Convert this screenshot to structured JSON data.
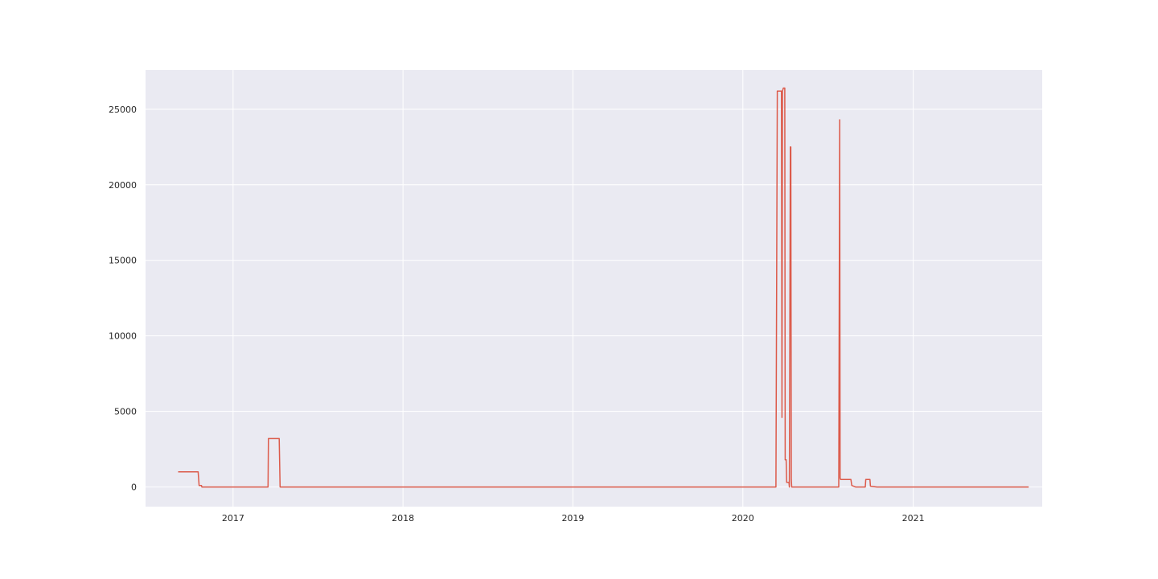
{
  "chart_data": {
    "type": "line",
    "title": "",
    "xlabel": "",
    "ylabel": "",
    "grid": true,
    "colors": {
      "plot_background": "#eaeaf2",
      "grid": "#ffffff",
      "line": "#dc5a4a"
    },
    "xlim": [
      "2016-06-27",
      "2021-10-05"
    ],
    "ylim": [
      -1300,
      27600
    ],
    "x_ticks": [
      {
        "date": "2017-01-01",
        "label": "2017"
      },
      {
        "date": "2018-01-01",
        "label": "2018"
      },
      {
        "date": "2019-01-01",
        "label": "2019"
      },
      {
        "date": "2020-01-01",
        "label": "2020"
      },
      {
        "date": "2021-01-01",
        "label": "2021"
      }
    ],
    "y_ticks": [
      {
        "value": 0,
        "label": "0"
      },
      {
        "value": 5000,
        "label": "5000"
      },
      {
        "value": 10000,
        "label": "10000"
      },
      {
        "value": 15000,
        "label": "15000"
      },
      {
        "value": 20000,
        "label": "20000"
      },
      {
        "value": 25000,
        "label": "25000"
      }
    ],
    "series": [
      {
        "x": [
          "2016-09-05",
          "2016-10-18",
          "2016-10-20",
          "2016-10-25",
          "2016-10-26",
          "2017-03-17",
          "2017-03-18",
          "2017-04-10",
          "2017-04-12",
          "2020-03-12",
          "2020-03-15",
          "2020-03-16",
          "2020-03-24",
          "2020-03-25",
          "2020-03-26",
          "2020-03-28",
          "2020-03-31",
          "2020-04-01",
          "2020-04-03",
          "2020-04-04",
          "2020-04-09",
          "2020-04-10",
          "2020-04-12",
          "2020-04-13",
          "2020-04-14",
          "2020-04-15",
          "2020-04-16",
          "2020-04-17",
          "2020-04-18",
          "2020-04-19",
          "2020-07-25",
          "2020-07-27",
          "2020-07-28",
          "2020-07-29",
          "2020-07-30",
          "2020-08-01",
          "2020-08-20",
          "2020-08-22",
          "2020-08-30",
          "2020-09-20",
          "2020-09-21",
          "2020-09-30",
          "2020-10-01",
          "2020-10-15",
          "2021-09-06"
        ],
        "y": [
          1000,
          1000,
          100,
          100,
          0,
          0,
          3200,
          3200,
          0,
          0,
          26200,
          26200,
          26200,
          4600,
          26200,
          26400,
          26400,
          1800,
          1800,
          300,
          300,
          0,
          22500,
          22500,
          500,
          0,
          0,
          0,
          0,
          0,
          0,
          24300,
          600,
          500,
          500,
          500,
          500,
          100,
          0,
          0,
          500,
          500,
          50,
          0,
          0
        ]
      }
    ]
  }
}
